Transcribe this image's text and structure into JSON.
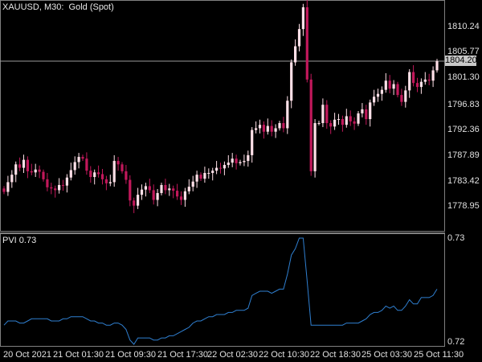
{
  "symbol_label": "XAUUSD, M30:  Gold (Spot)",
  "current_price": "1804.20",
  "price_scale": [
    "1810.24",
    "1805.77",
    "1801.30",
    "1796.83",
    "1792.36",
    "1787.89",
    "1783.42",
    "1778.95"
  ],
  "indicator": {
    "label": "PVI 0.73",
    "scale": [
      "0.73",
      "0.72"
    ],
    "line_color": "#2f7fd0"
  },
  "time_axis": [
    "20 Oct 2021",
    "21 Oct 01:30",
    "21 Oct 09:30",
    "21 Oct 17:30",
    "22 Oct 02:30",
    "22 Oct 10:30",
    "22 Oct 18:30",
    "25 Oct 03:30",
    "25 Oct 11:30"
  ],
  "colors": {
    "background": "#000000",
    "bull": "#ffe0e8",
    "bear": "#c2185b",
    "grid": "#808080"
  },
  "chart_data": {
    "type": "candlestick",
    "title": "XAUUSD, M30:  Gold (Spot)",
    "ylim": [
      1776.5,
      1812.5
    ],
    "closes": [
      1781.4,
      1783.1,
      1784.4,
      1786.2,
      1785.6,
      1787.0,
      1785.0,
      1784.8,
      1785.3,
      1784.9,
      1783.6,
      1782.2,
      1782.0,
      1781.7,
      1782.6,
      1782.5,
      1783.9,
      1785.2,
      1786.6,
      1787.5,
      1787.2,
      1785.1,
      1784.0,
      1784.8,
      1784.5,
      1783.6,
      1782.9,
      1783.1,
      1786.8,
      1786.2,
      1785.0,
      1783.5,
      1779.9,
      1779.0,
      1780.9,
      1781.8,
      1782.4,
      1781.7,
      1780.0,
      1781.2,
      1782.6,
      1781.7,
      1782.0,
      1781.6,
      1780.6,
      1780.0,
      1781.5,
      1782.3,
      1783.2,
      1784.4,
      1783.7,
      1784.7,
      1784.7,
      1785.1,
      1785.6,
      1785.5,
      1786.1,
      1786.5,
      1787.2,
      1786.4,
      1786.6,
      1786.8,
      1787.8,
      1792.2,
      1792.5,
      1793.1,
      1791.9,
      1792.9,
      1791.9,
      1792.5,
      1793.4,
      1792.5,
      1797.3,
      1804.0,
      1806.8,
      1809.8,
      1813.6,
      1801.0,
      1785.0,
      1793.4,
      1793.4,
      1796.6,
      1793.4,
      1792.8,
      1794.0,
      1794.1,
      1793.1,
      1794.6,
      1793.7,
      1793.3,
      1795.1,
      1795.8,
      1794.1,
      1797.0,
      1798.0,
      1798.5,
      1799.2,
      1800.8,
      1799.4,
      1800.2,
      1798.3,
      1797.1,
      1799.1,
      1802.3,
      1800.4,
      1799.7,
      1800.6,
      1801.0,
      1800.8,
      1802.6,
      1804.2
    ],
    "pvi": [
      0.7234,
      0.7236,
      0.7236,
      0.7236,
      0.7235,
      0.7235,
      0.7236,
      0.7237,
      0.7237,
      0.7237,
      0.7237,
      0.7237,
      0.7236,
      0.7236,
      0.7236,
      0.7237,
      0.7237,
      0.7238,
      0.7238,
      0.7238,
      0.7238,
      0.7237,
      0.7236,
      0.7236,
      0.7235,
      0.7235,
      0.7234,
      0.7234,
      0.7235,
      0.7235,
      0.7234,
      0.7232,
      0.7227,
      0.7225,
      0.7228,
      0.7228,
      0.7228,
      0.7228,
      0.7227,
      0.7227,
      0.7228,
      0.7228,
      0.7229,
      0.7229,
      0.723,
      0.7231,
      0.7232,
      0.7233,
      0.7235,
      0.7236,
      0.7236,
      0.7237,
      0.7238,
      0.7238,
      0.7239,
      0.7239,
      0.7239,
      0.724,
      0.724,
      0.7241,
      0.7241,
      0.7241,
      0.7242,
      0.7248,
      0.7249,
      0.725,
      0.725,
      0.725,
      0.7249,
      0.725,
      0.7251,
      0.7251,
      0.7258,
      0.7267,
      0.727,
      0.7275,
      0.7275,
      0.7255,
      0.7234,
      0.7234,
      0.7234,
      0.7234,
      0.7234,
      0.7234,
      0.7234,
      0.7234,
      0.7234,
      0.7235,
      0.7235,
      0.7235,
      0.7235,
      0.7236,
      0.7237,
      0.7239,
      0.724,
      0.724,
      0.7241,
      0.7243,
      0.7242,
      0.7243,
      0.7241,
      0.7241,
      0.7243,
      0.7246,
      0.7244,
      0.7244,
      0.7247,
      0.7247,
      0.7247,
      0.7248,
      0.7251
    ]
  }
}
